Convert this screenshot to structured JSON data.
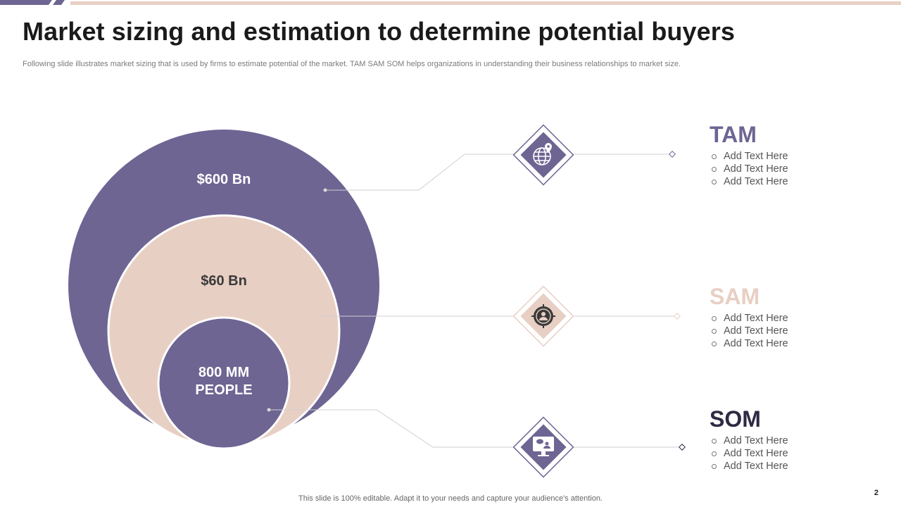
{
  "title": "Market sizing and estimation to determine potential buyers",
  "subtitle": "Following slide illustrates market sizing that is used by firms to estimate potential of the market. TAM SAM SOM helps organizations in understanding their business relationships to market size.",
  "circles": {
    "outer_value": "$600 Bn",
    "middle_value": "$60 Bn",
    "inner_line1": "800 MM",
    "inner_line2": "PEOPLE"
  },
  "segments": [
    {
      "name": "TAM",
      "color": "#6e6593",
      "icon": "globe-location-icon",
      "items": [
        "Add Text Here",
        "Add Text Here",
        "Add Text Here"
      ]
    },
    {
      "name": "SAM",
      "color": "#e8cfc4",
      "icon": "target-user-icon",
      "items": [
        "Add Text Here",
        "Add Text Here",
        "Add Text Here"
      ]
    },
    {
      "name": "SOM",
      "color": "#2e2a44",
      "icon": "monitor-chat-icon",
      "items": [
        "Add Text Here",
        "Add Text Here",
        "Add Text Here"
      ]
    }
  ],
  "colors": {
    "purple": "#6e6593",
    "peach": "#e8cfc4",
    "dark": "#2e2a44",
    "line": "#cfcfcf"
  },
  "footer": "This slide is 100% editable. Adapt it to your needs and capture your audience's attention.",
  "page_number": "2"
}
